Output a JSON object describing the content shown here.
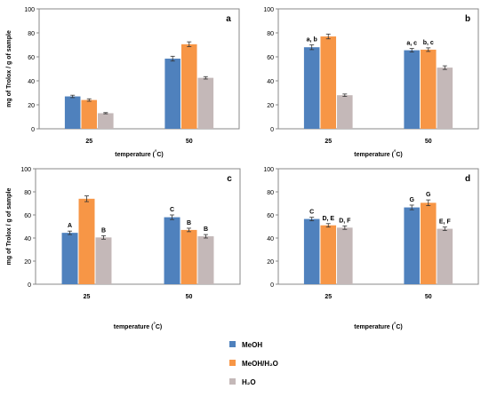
{
  "shared": {
    "ylabel": "mg of Trolox / g of sample",
    "xlabel": "temperature (°C)",
    "categories": [
      "25",
      "50"
    ]
  },
  "legend": {
    "items": [
      {
        "label": "MeOH",
        "color": "#4f81bd"
      },
      {
        "label": "MeOH/H₂O",
        "color": "#f79646"
      },
      {
        "label": "H₂O",
        "color": "#c4b8b8"
      }
    ]
  },
  "chart_data": [
    {
      "type": "bar",
      "panel": "a",
      "categories": [
        "25",
        "50"
      ],
      "ylim": [
        0,
        100
      ],
      "yticks": [
        0,
        20,
        40,
        60,
        80,
        100
      ],
      "xlabel": "temperature (°C)",
      "ylabel": "mg of Trolox / g of sample",
      "grid": false,
      "series": [
        {
          "name": "MeOH",
          "values": [
            27,
            58.5
          ],
          "errors": [
            1,
            2
          ],
          "labels": [
            "",
            ""
          ]
        },
        {
          "name": "MeOH/H₂O",
          "values": [
            24,
            70.5
          ],
          "errors": [
            1,
            2
          ],
          "labels": [
            "",
            ""
          ]
        },
        {
          "name": "H₂O",
          "values": [
            13,
            42.5
          ],
          "errors": [
            0.5,
            1
          ],
          "labels": [
            "",
            ""
          ]
        }
      ]
    },
    {
      "type": "bar",
      "panel": "b",
      "categories": [
        "25",
        "50"
      ],
      "ylim": [
        0,
        100
      ],
      "yticks": [
        0,
        20,
        40,
        60,
        80,
        100
      ],
      "xlabel": "temperature (°C)",
      "ylabel": "",
      "grid": false,
      "series": [
        {
          "name": "MeOH",
          "values": [
            68,
            65.5
          ],
          "errors": [
            2,
            1.5
          ],
          "labels": [
            "a, b",
            "a, c"
          ]
        },
        {
          "name": "MeOH/H₂O",
          "values": [
            77,
            66
          ],
          "errors": [
            2,
            1.5
          ],
          "labels": [
            "",
            "b, c"
          ]
        },
        {
          "name": "H₂O",
          "values": [
            28,
            51
          ],
          "errors": [
            1,
            1.5
          ],
          "labels": [
            "",
            ""
          ]
        }
      ]
    },
    {
      "type": "bar",
      "panel": "c",
      "categories": [
        "25",
        "50"
      ],
      "ylim": [
        0,
        100
      ],
      "yticks": [
        0,
        20,
        40,
        60,
        80,
        100
      ],
      "xlabel": "temperature (°C)",
      "ylabel": "mg of Trolox / g of sample",
      "grid": false,
      "series": [
        {
          "name": "MeOH",
          "values": [
            44.5,
            58
          ],
          "errors": [
            1.5,
            2
          ],
          "labels": [
            "A",
            "C"
          ]
        },
        {
          "name": "MeOH/H₂O",
          "values": [
            74,
            47
          ],
          "errors": [
            2.5,
            1.5
          ],
          "labels": [
            "",
            "B"
          ]
        },
        {
          "name": "H₂O",
          "values": [
            40.5,
            41.5
          ],
          "errors": [
            1.5,
            1.5
          ],
          "labels": [
            "B",
            "B"
          ]
        }
      ]
    },
    {
      "type": "bar",
      "panel": "d",
      "categories": [
        "25",
        "50"
      ],
      "ylim": [
        0,
        100
      ],
      "yticks": [
        0,
        20,
        40,
        60,
        80,
        100
      ],
      "xlabel": "temperature (°C)",
      "ylabel": "",
      "grid": false,
      "series": [
        {
          "name": "MeOH",
          "values": [
            56.5,
            66.5
          ],
          "errors": [
            1.5,
            2
          ],
          "labels": [
            "C",
            "G"
          ]
        },
        {
          "name": "MeOH/H₂O",
          "values": [
            51,
            70.5
          ],
          "errors": [
            1.5,
            2.5
          ],
          "labels": [
            "D, E",
            "G"
          ]
        },
        {
          "name": "H₂O",
          "values": [
            49,
            48
          ],
          "errors": [
            1.5,
            1.5
          ],
          "labels": [
            "D, F",
            "E, F"
          ]
        }
      ]
    }
  ]
}
